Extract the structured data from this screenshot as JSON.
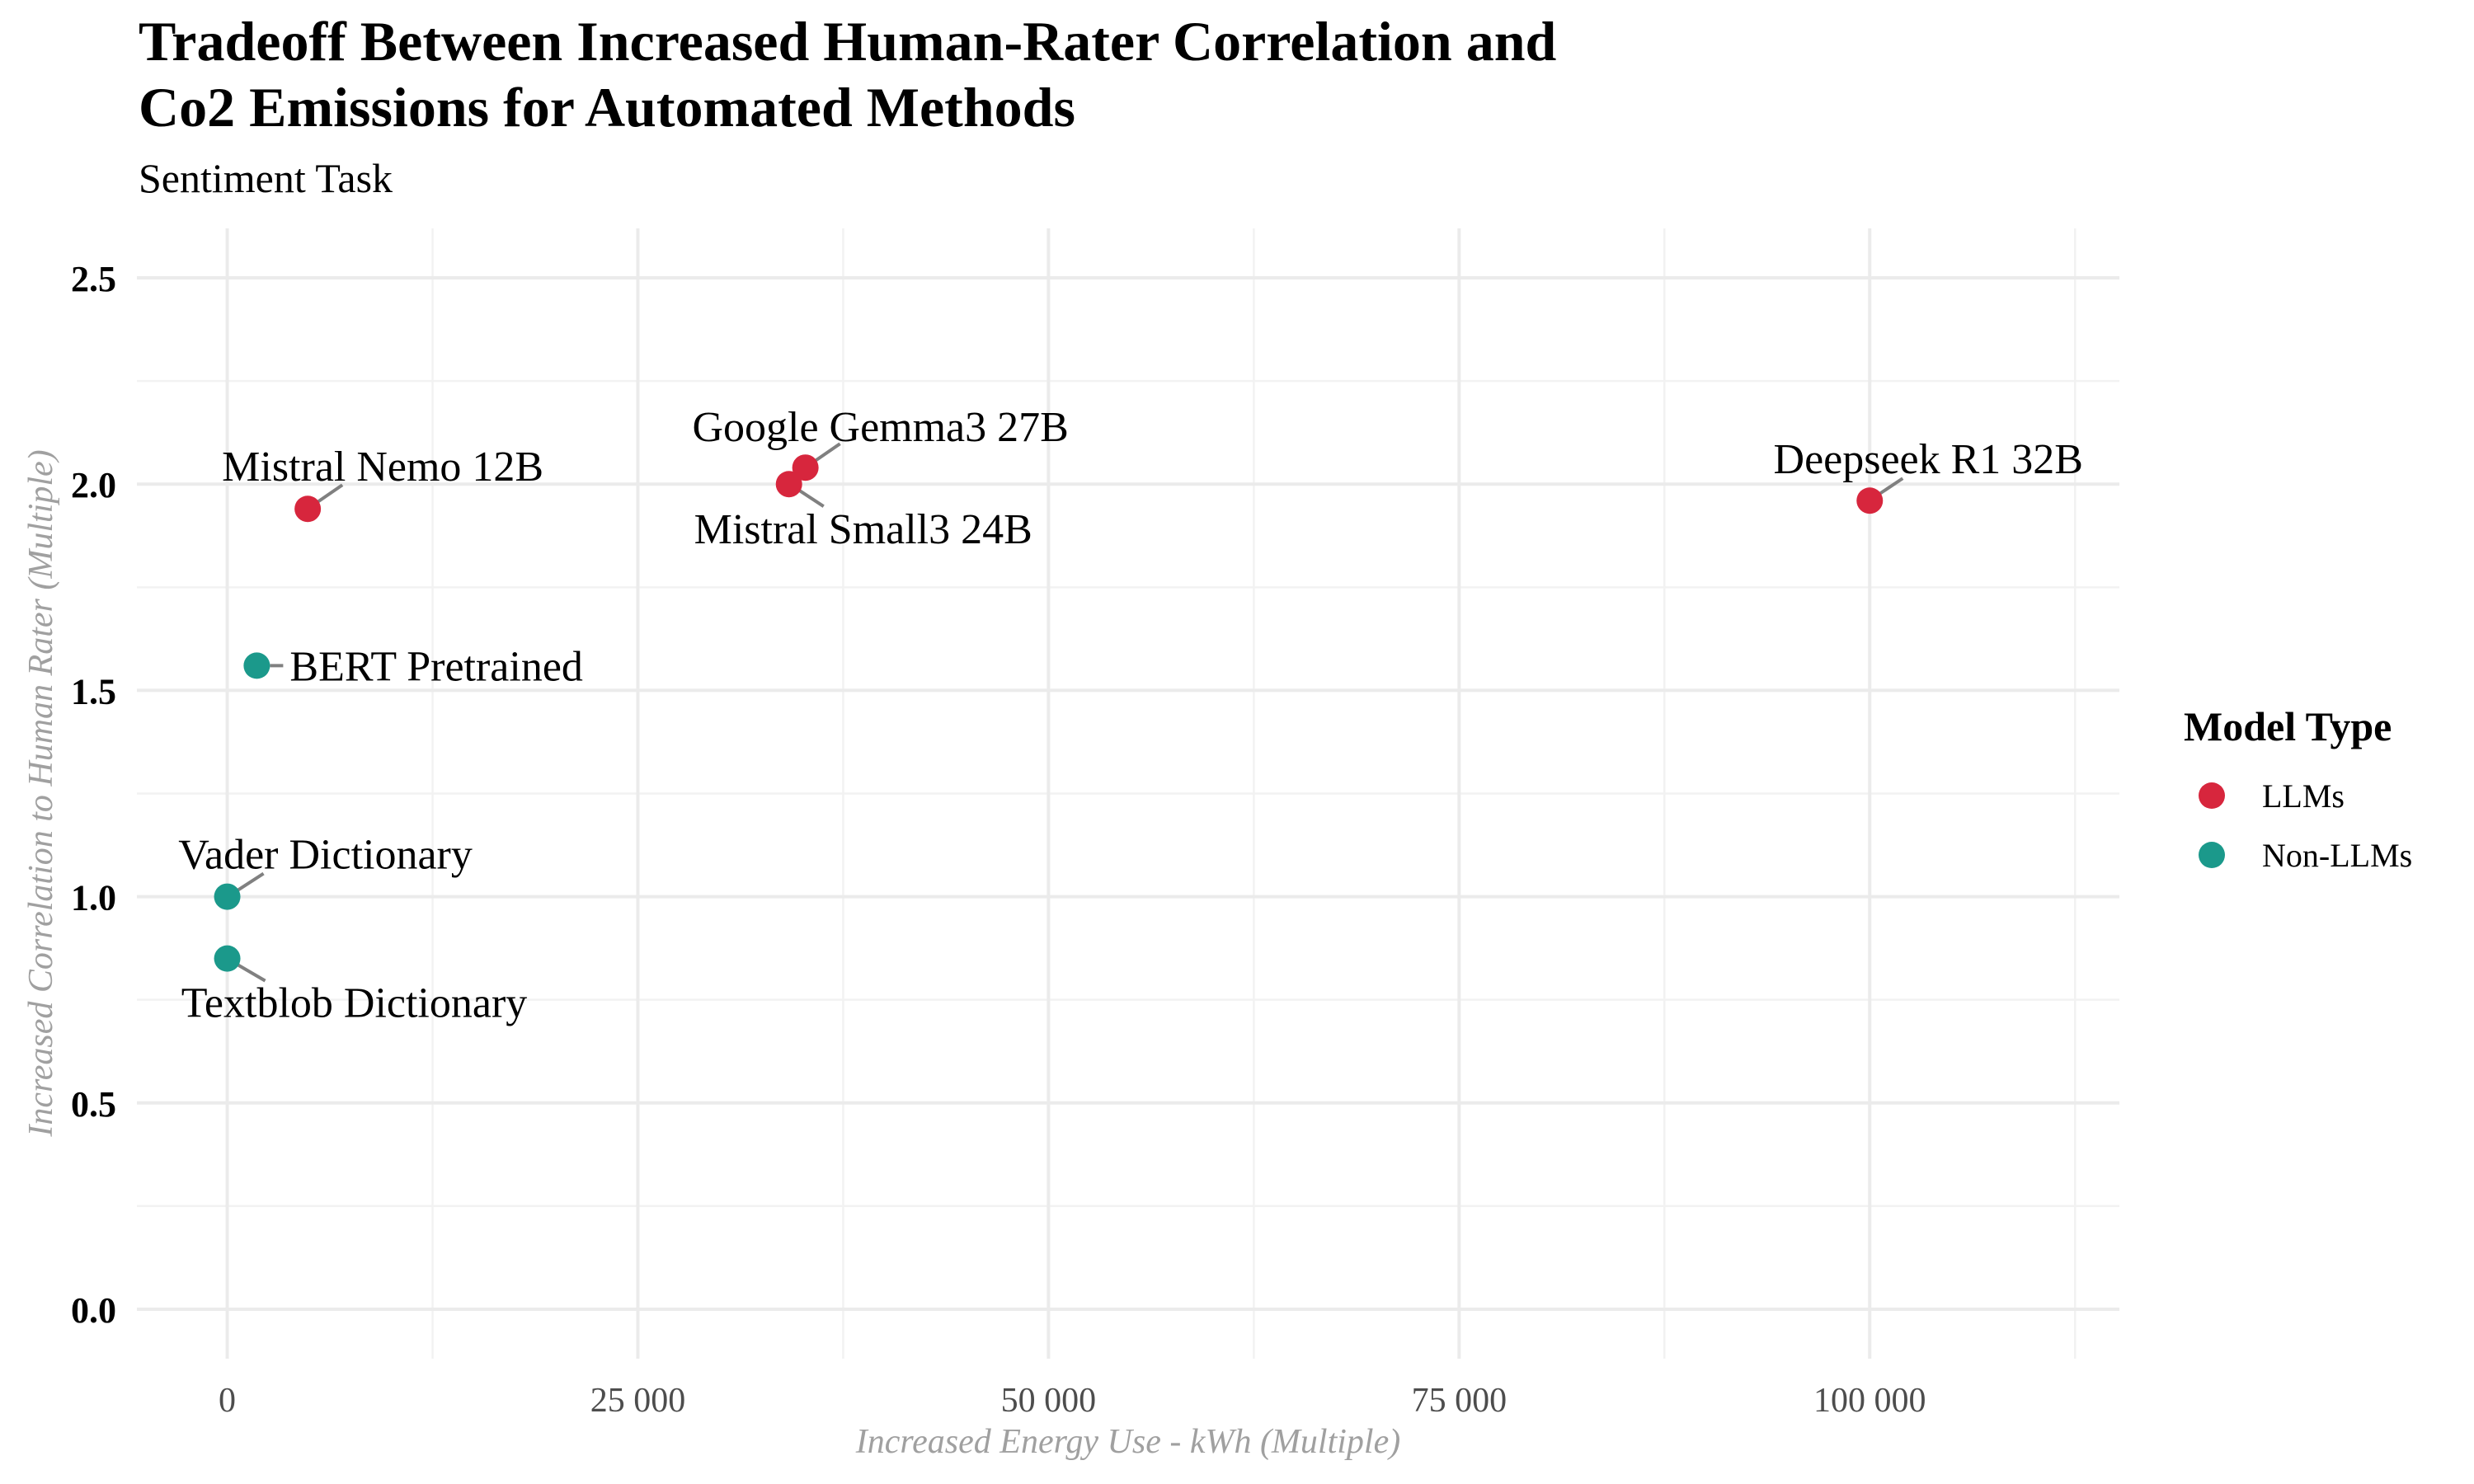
{
  "chart_data": {
    "type": "scatter",
    "title_lines": [
      "Tradeoff  Between Increased Human-Rater Correlation and",
      "Co2 Emissions for Automated Methods"
    ],
    "subtitle": "Sentiment Task",
    "xlabel": "Increased Energy Use - kWh (Multiple)",
    "ylabel": "Increased Correlation to Human Rater (Multiple)",
    "xlim": [
      -5500,
      115200
    ],
    "ylim": [
      -0.12,
      2.62
    ],
    "x_ticks": [
      0,
      25000,
      50000,
      75000,
      100000
    ],
    "x_tick_labels": [
      "0",
      "25 000",
      "50 000",
      "75 000",
      "100 000"
    ],
    "x_minor_ticks": [
      12500,
      37500,
      62500,
      87500,
      112500
    ],
    "y_ticks": [
      0.0,
      0.5,
      1.0,
      1.5,
      2.0,
      2.5
    ],
    "y_tick_labels": [
      "0.0",
      "0.5",
      "1.0",
      "1.5",
      "2.0",
      "2.5"
    ],
    "y_minor_ticks": [
      0.25,
      0.75,
      1.25,
      1.75,
      2.25
    ],
    "grid": true,
    "legend": {
      "title": "Model Type",
      "placement": "right",
      "entries": [
        {
          "name": "LLMs",
          "color": "#D7263D"
        },
        {
          "name": "Non-LLMs",
          "color": "#1B998B"
        }
      ]
    },
    "points": [
      {
        "label": "Mistral Nemo 12B",
        "group": "LLMs",
        "x": 4900,
        "y": 1.94
      },
      {
        "label": "Google Gemma3 27B",
        "group": "LLMs",
        "x": 35200,
        "y": 2.04
      },
      {
        "label": "Mistral Small3 24B",
        "group": "LLMs",
        "x": 34200,
        "y": 2.0
      },
      {
        "label": "Deepseek R1 32B",
        "group": "LLMs",
        "x": 100000,
        "y": 1.96
      },
      {
        "label": "BERT Pretrained",
        "group": "Non-LLMs",
        "x": 1800,
        "y": 1.56
      },
      {
        "label": "Vader Dictionary",
        "group": "Non-LLMs",
        "x": 0,
        "y": 1.0
      },
      {
        "label": "Textblob Dictionary",
        "group": "Non-LLMs",
        "x": 0,
        "y": 0.85
      }
    ]
  }
}
